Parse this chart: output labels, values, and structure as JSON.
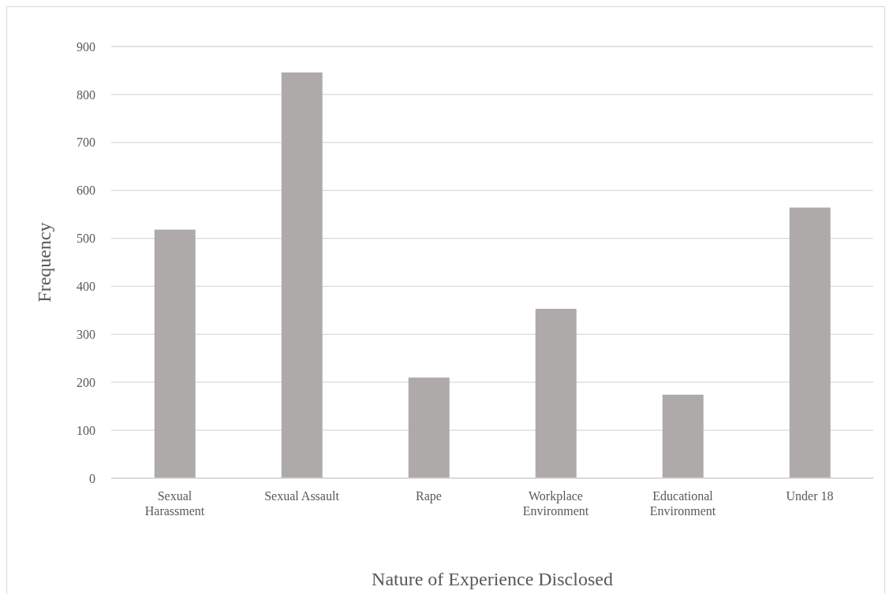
{
  "chart_data": {
    "type": "bar",
    "xlabel": "Nature of Experience Disclosed",
    "ylabel": "Frequency",
    "categories": [
      "Sexual Harassment",
      "Sexual Assault",
      "Rape",
      "Workplace Environment",
      "Educational Environment",
      "Under 18"
    ],
    "values": [
      518,
      846,
      210,
      353,
      174,
      564
    ],
    "color": "#aeaaaa",
    "ylim": [
      0,
      900
    ],
    "yticks": [
      0,
      100,
      200,
      300,
      400,
      500,
      600,
      700,
      800,
      900
    ],
    "grid": "y",
    "legend": false
  }
}
